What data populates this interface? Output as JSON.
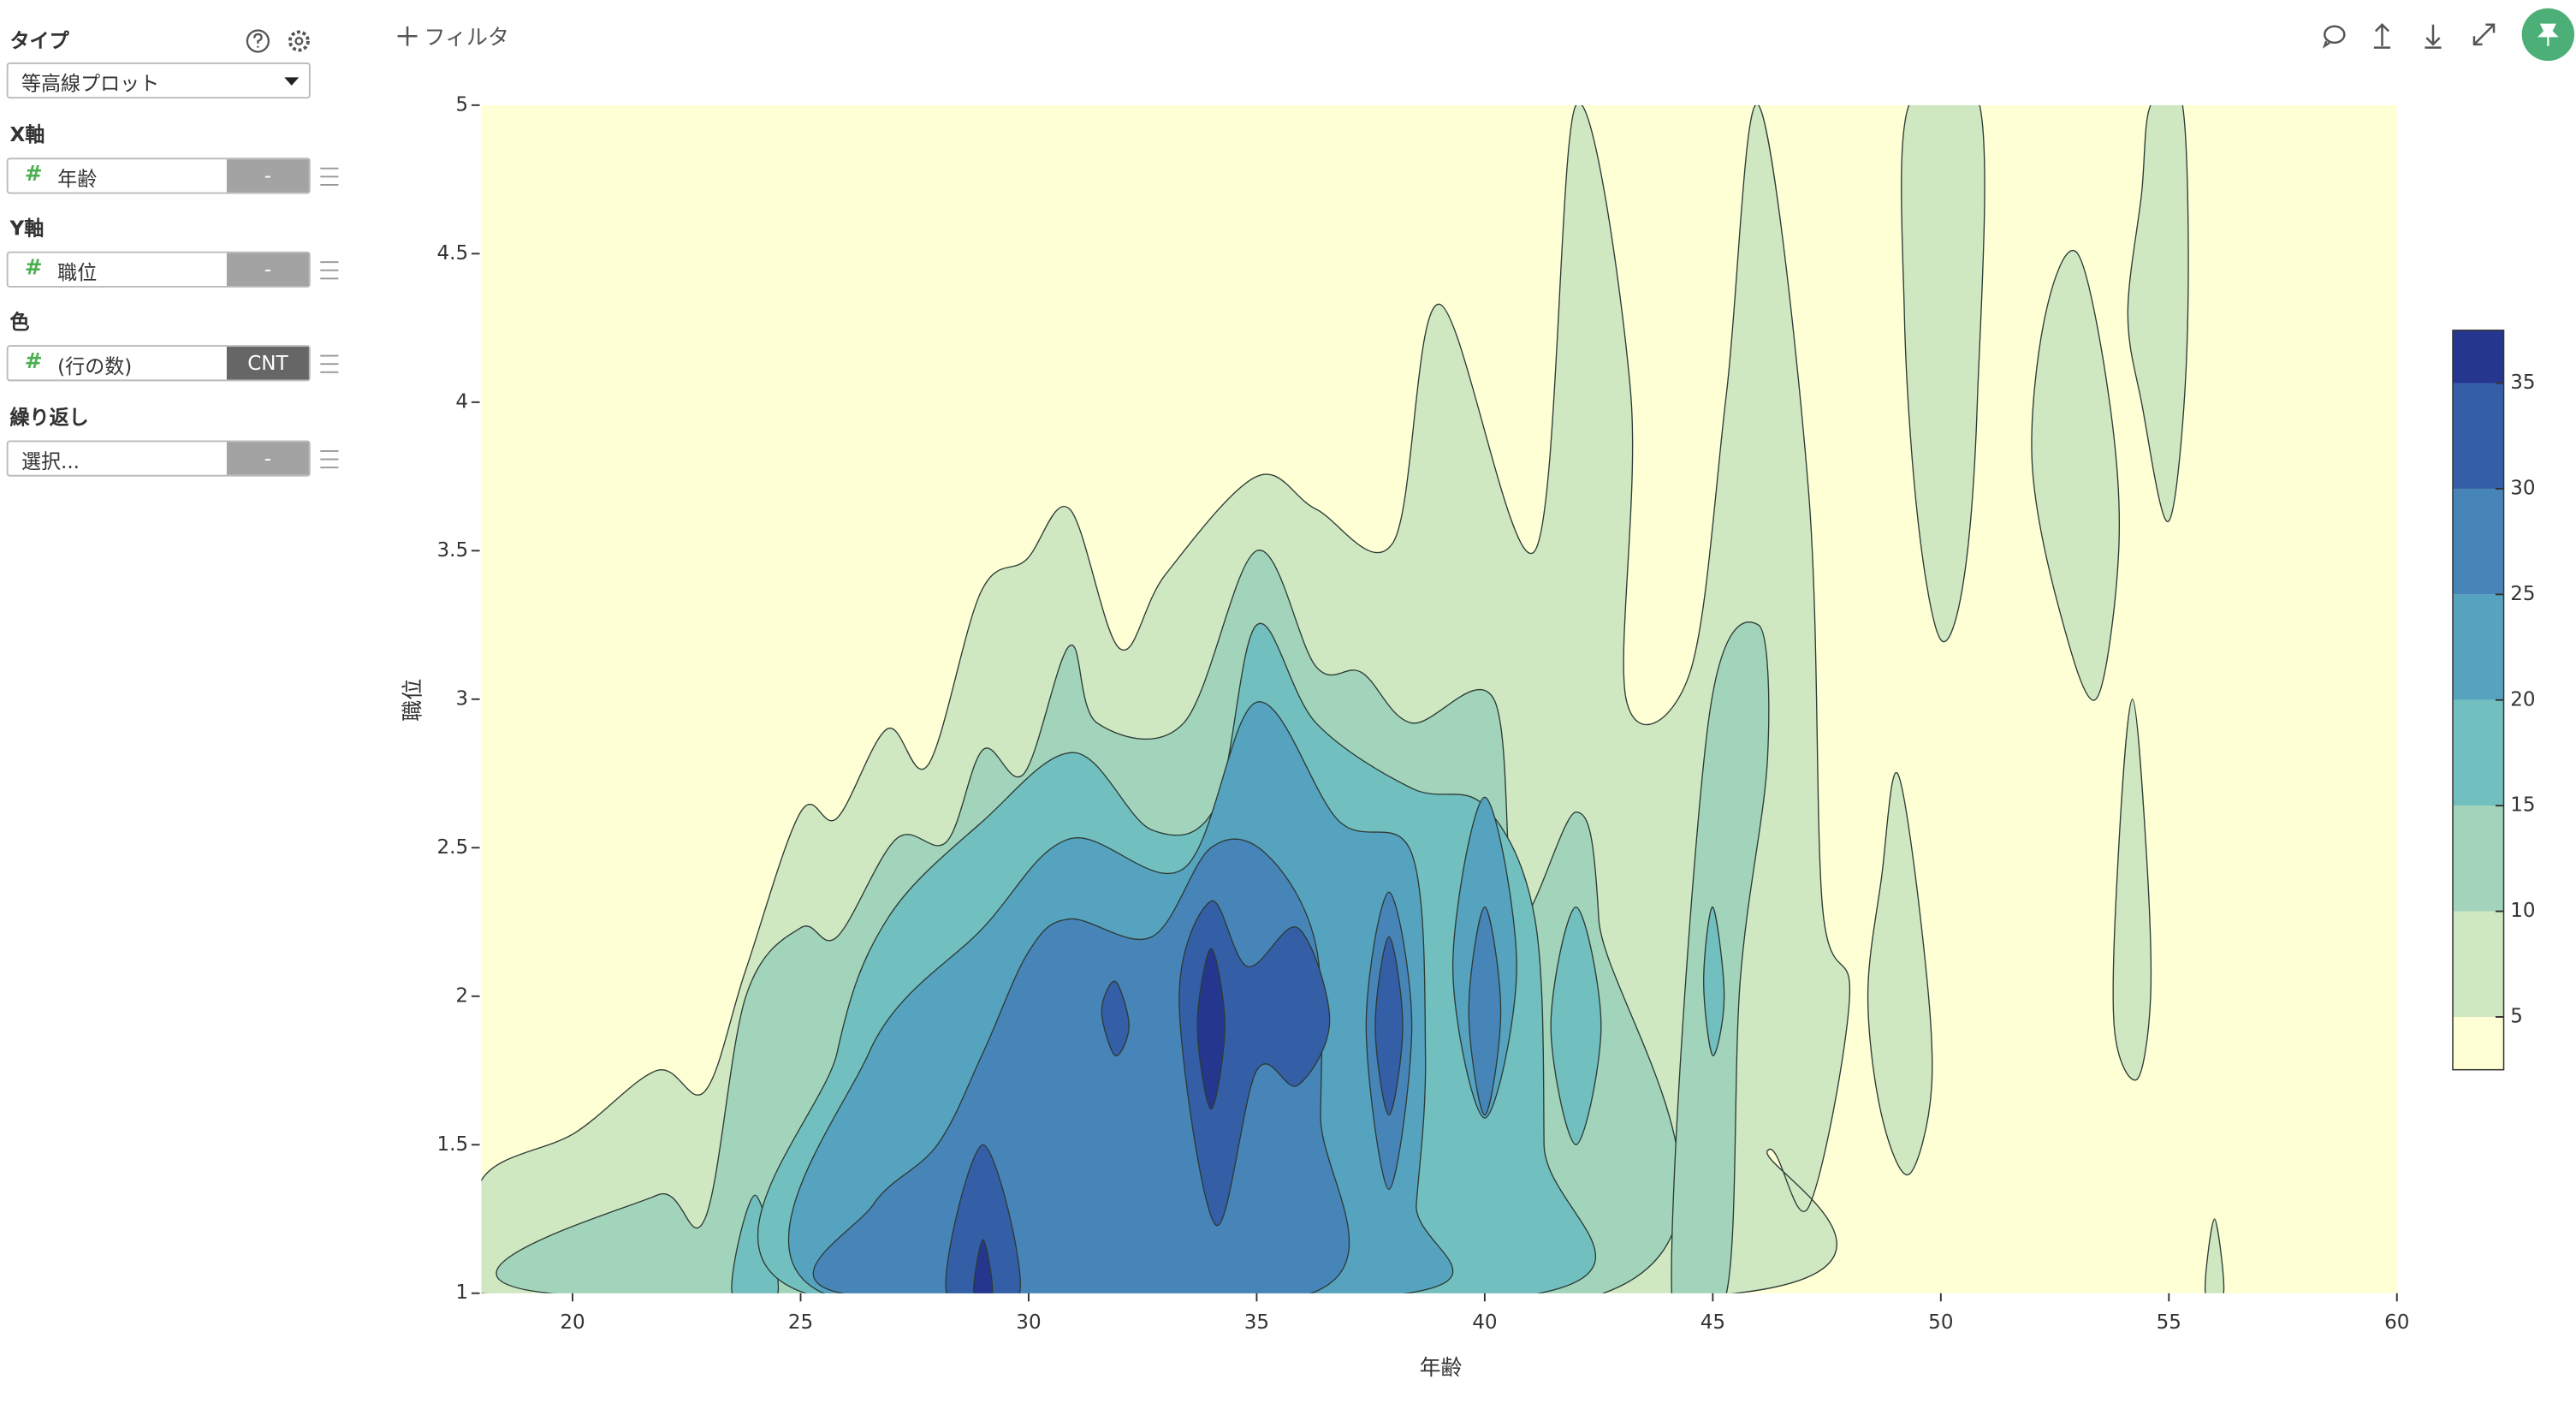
{
  "sidebar": {
    "type": {
      "label": "タイプ",
      "value": "等高線プロット"
    },
    "fields": [
      {
        "label": "X軸",
        "icon": "#",
        "value": "年齢",
        "agg": "-"
      },
      {
        "label": "Y軸",
        "icon": "#",
        "value": "職位",
        "agg": "-"
      },
      {
        "label": "色",
        "icon": "#",
        "value": "(行の数)",
        "agg": "CNT"
      },
      {
        "label": "繰り返し",
        "value": "選択...",
        "agg": "-"
      }
    ]
  },
  "toolbar": {
    "filter": "フィルタ"
  },
  "chart_data": {
    "type": "contour",
    "x_label": "年齢",
    "y_label": "職位",
    "xlim": [
      18,
      60
    ],
    "ylim": [
      1,
      5
    ],
    "xticks": [
      20,
      25,
      30,
      35,
      40,
      45,
      50,
      55,
      60
    ],
    "yticks": [
      1,
      1.5,
      2,
      2.5,
      3,
      3.5,
      4,
      4.5,
      5
    ],
    "colorbar": {
      "bounds": [
        2.5,
        5,
        10,
        15,
        20,
        25,
        30,
        35,
        37.5
      ],
      "ticks": [
        5,
        10,
        15,
        20,
        25,
        30,
        35
      ],
      "colors": [
        "#ffffd6",
        "#cfe8c2",
        "#a2d4bb",
        "#72bfbf",
        "#56a3c0",
        "#4785b9",
        "#345ea6",
        "#25368f"
      ]
    },
    "contours": [
      {
        "level": 5,
        "points": [
          [
            18,
            1
          ],
          [
            18,
            1.38
          ],
          [
            20.05,
            1.54
          ],
          [
            21.85,
            1.75
          ],
          [
            22.9,
            1.68
          ],
          [
            23.8,
            2.09
          ],
          [
            25,
            2.62
          ],
          [
            25.8,
            2.6
          ],
          [
            26.9,
            2.9
          ],
          [
            27.8,
            2.78
          ],
          [
            28.95,
            3.36
          ],
          [
            29.95,
            3.47
          ],
          [
            30.9,
            3.64
          ],
          [
            32,
            3.17
          ],
          [
            33,
            3.42
          ],
          [
            35,
            3.75
          ],
          [
            36.3,
            3.64
          ],
          [
            38,
            3.53
          ],
          [
            39,
            4.33
          ],
          [
            41.1,
            3.5
          ],
          [
            42,
            5
          ],
          [
            43.2,
            4.03
          ],
          [
            43.1,
            3.0
          ],
          [
            44.5,
            3.09
          ],
          [
            45.3,
            4.03
          ],
          [
            46,
            5
          ],
          [
            47.1,
            3.7
          ],
          [
            47.4,
            2.31
          ],
          [
            48,
            2.0
          ],
          [
            47.1,
            1.29
          ],
          [
            46.2,
            1.48
          ],
          [
            45.5,
            1
          ]
        ]
      },
      {
        "level": 5,
        "points": [
          [
            49.05,
            2.75
          ],
          [
            49.6,
            2.2
          ],
          [
            49.8,
            1.7
          ],
          [
            49.3,
            1.4
          ],
          [
            48.7,
            1.6
          ],
          [
            48.4,
            2.0
          ],
          [
            48.7,
            2.4
          ]
        ]
      },
      {
        "level": 5,
        "points": [
          [
            49.3,
            5
          ],
          [
            50.85,
            5
          ],
          [
            50.8,
            4.0
          ],
          [
            50.5,
            3.4
          ],
          [
            50.0,
            3.2
          ],
          [
            49.5,
            3.6
          ],
          [
            49.2,
            4.3
          ]
        ]
      },
      {
        "level": 5,
        "points": [
          [
            53,
            4.5
          ],
          [
            53.7,
            4.0
          ],
          [
            53.9,
            3.5
          ],
          [
            53.4,
            3.0
          ],
          [
            52.6,
            3.3
          ],
          [
            52,
            3.8
          ],
          [
            52.3,
            4.3
          ]
        ]
      },
      {
        "level": 5,
        "points": [
          [
            54.6,
            5
          ],
          [
            55.3,
            5
          ],
          [
            55.4,
            4.2
          ],
          [
            55,
            3.6
          ],
          [
            54.4,
            4.0
          ],
          [
            54.1,
            4.3
          ],
          [
            54.4,
            4.7
          ]
        ]
      },
      {
        "level": 5,
        "points": [
          [
            54.2,
            3.0
          ],
          [
            54.5,
            2.5
          ],
          [
            54.6,
            2.0
          ],
          [
            54.3,
            1.72
          ],
          [
            53.8,
            1.9
          ],
          [
            53.9,
            2.5
          ]
        ]
      },
      {
        "level": 5,
        "points": [
          [
            56,
            1.25
          ],
          [
            56.2,
            1
          ],
          [
            55.8,
            1
          ]
        ]
      },
      {
        "level": 10,
        "points": [
          [
            19.5,
            1
          ],
          [
            21.85,
            1.33
          ],
          [
            22.9,
            1.25
          ],
          [
            23.8,
            2.0
          ],
          [
            25,
            2.23
          ],
          [
            25.8,
            2.2
          ],
          [
            27.1,
            2.53
          ],
          [
            28.2,
            2.52
          ],
          [
            29,
            2.83
          ],
          [
            29.9,
            2.75
          ],
          [
            30.9,
            3.18
          ],
          [
            31.5,
            2.92
          ],
          [
            33.4,
            2.92
          ],
          [
            35,
            3.5
          ],
          [
            36.3,
            3.11
          ],
          [
            37.3,
            3.09
          ],
          [
            38.4,
            2.92
          ],
          [
            40.2,
            3.0
          ],
          [
            40.7,
            2.26
          ],
          [
            42,
            2.62
          ],
          [
            42.5,
            2.26
          ],
          [
            42.6,
            1
          ]
        ]
      },
      {
        "level": 10,
        "points": [
          [
            44.1,
            1
          ],
          [
            44.9,
            2.92
          ],
          [
            46,
            3.25
          ],
          [
            46.2,
            2.8
          ],
          [
            45.6,
            2.05
          ],
          [
            45.3,
            1
          ]
        ]
      },
      {
        "level": 15,
        "points": [
          [
            24,
            1.33
          ],
          [
            24.5,
            1
          ],
          [
            23.5,
            1
          ]
        ]
      },
      {
        "level": 15,
        "points": [
          [
            25.1,
            1
          ],
          [
            25.8,
            1.81
          ],
          [
            26.9,
            2.26
          ],
          [
            29,
            2.59
          ],
          [
            31,
            2.82
          ],
          [
            32.7,
            2.56
          ],
          [
            34.1,
            2.64
          ],
          [
            35,
            3.25
          ],
          [
            36.3,
            2.92
          ],
          [
            38.4,
            2.7
          ],
          [
            40,
            2.64
          ],
          [
            41.1,
            2.26
          ],
          [
            41.3,
            1.5
          ],
          [
            41.2,
            1
          ]
        ]
      },
      {
        "level": 15,
        "points": [
          [
            42,
            2.3
          ],
          [
            42.55,
            1.9
          ],
          [
            42,
            1.5
          ],
          [
            41.45,
            1.9
          ]
        ]
      },
      {
        "level": 15,
        "points": [
          [
            45,
            2.3
          ],
          [
            45.25,
            2.0
          ],
          [
            45,
            1.8
          ],
          [
            44.8,
            2.05
          ]
        ]
      },
      {
        "level": 20,
        "points": [
          [
            25.5,
            1
          ],
          [
            26.5,
            1.81
          ],
          [
            29,
            2.23
          ],
          [
            30.9,
            2.53
          ],
          [
            33.4,
            2.43
          ],
          [
            35,
            2.99
          ],
          [
            36.8,
            2.59
          ],
          [
            38.4,
            2.48
          ],
          [
            38.7,
            1.8
          ],
          [
            38.5,
            1.3
          ],
          [
            38.3,
            1
          ]
        ]
      },
      {
        "level": 20,
        "points": [
          [
            40,
            2.67
          ],
          [
            40.7,
            2.1
          ],
          [
            40,
            1.59
          ],
          [
            39.3,
            2.1
          ]
        ]
      },
      {
        "level": 25,
        "points": [
          [
            25.9,
            1
          ],
          [
            26.6,
            1.3
          ],
          [
            28,
            1.5
          ],
          [
            29,
            1.81
          ],
          [
            30,
            2.15
          ],
          [
            30.9,
            2.26
          ],
          [
            32.7,
            2.2
          ],
          [
            34,
            2.5
          ],
          [
            35.2,
            2.48
          ],
          [
            36.3,
            2.17
          ],
          [
            36.4,
            1.6
          ],
          [
            36.2,
            1
          ]
        ]
      },
      {
        "level": 25,
        "points": [
          [
            37.9,
            2.35
          ],
          [
            38.4,
            1.9
          ],
          [
            37.9,
            1.35
          ],
          [
            37.4,
            1.9
          ]
        ]
      },
      {
        "level": 25,
        "points": [
          [
            40,
            2.3
          ],
          [
            40.35,
            1.95
          ],
          [
            40,
            1.6
          ],
          [
            39.65,
            1.95
          ]
        ]
      },
      {
        "level": 30,
        "points": [
          [
            28.2,
            1
          ],
          [
            29,
            1.5
          ],
          [
            29.8,
            1
          ]
        ]
      },
      {
        "level": 30,
        "points": [
          [
            34,
            2.32
          ],
          [
            34.8,
            2.1
          ],
          [
            35.9,
            2.23
          ],
          [
            36.6,
            1.92
          ],
          [
            35.9,
            1.7
          ],
          [
            35,
            1.75
          ],
          [
            34.1,
            1.23
          ],
          [
            33.3,
            1.98
          ]
        ]
      },
      {
        "level": 30,
        "points": [
          [
            31.9,
            2.05
          ],
          [
            32.2,
            1.9
          ],
          [
            31.9,
            1.8
          ],
          [
            31.6,
            1.95
          ]
        ]
      },
      {
        "level": 30,
        "points": [
          [
            37.9,
            2.2
          ],
          [
            38.2,
            1.9
          ],
          [
            37.9,
            1.6
          ],
          [
            37.6,
            1.9
          ]
        ]
      },
      {
        "level": 35,
        "points": [
          [
            34,
            2.16
          ],
          [
            34.3,
            1.9
          ],
          [
            34,
            1.62
          ],
          [
            33.7,
            1.9
          ]
        ]
      },
      {
        "level": 35,
        "points": [
          [
            29,
            1.18
          ],
          [
            29.2,
            1
          ],
          [
            28.8,
            1
          ]
        ]
      }
    ]
  }
}
